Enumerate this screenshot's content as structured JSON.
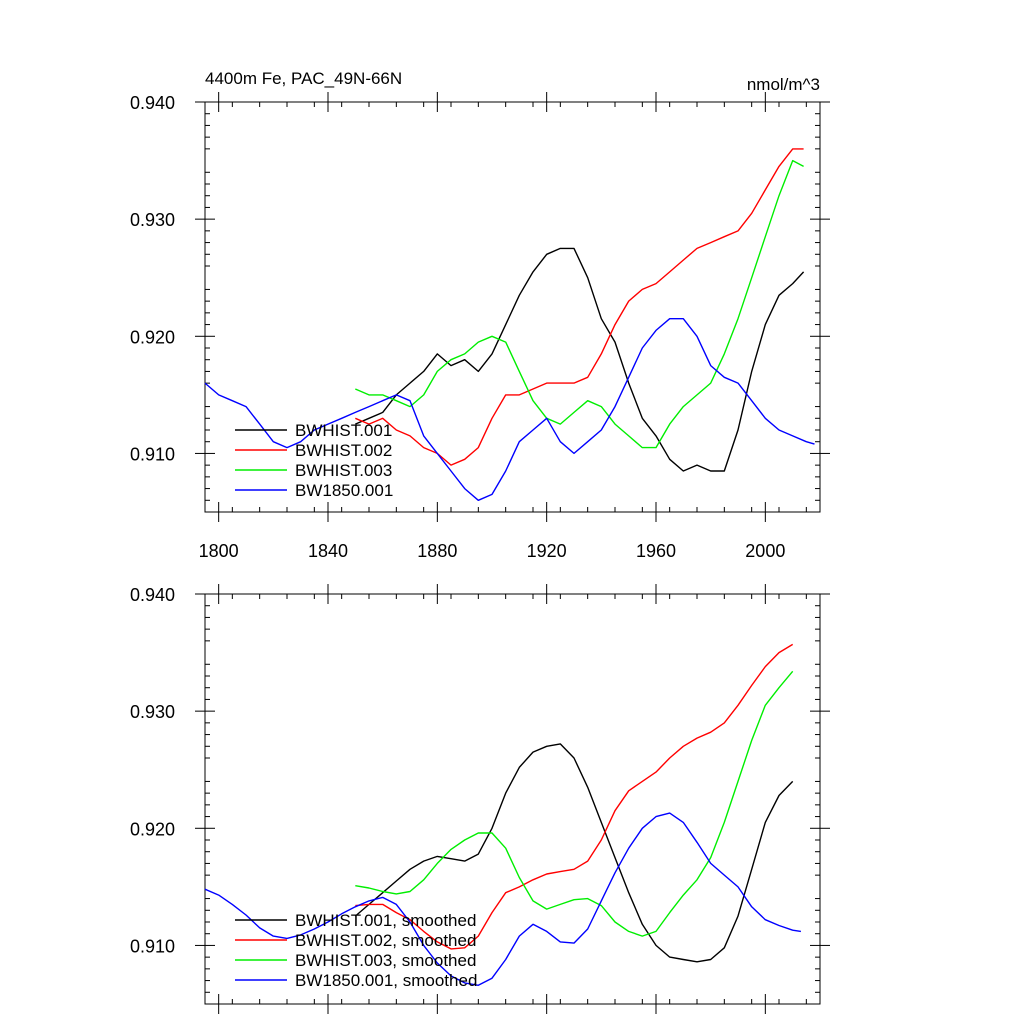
{
  "chart_data": [
    {
      "type": "line",
      "title": "4400m Fe, PAC_49N-66N",
      "units": "nmol/m^3",
      "xlim": [
        1795,
        2020
      ],
      "ylim": [
        0.905,
        0.94
      ],
      "xticks": [
        1800,
        1840,
        1880,
        1920,
        1960,
        2000
      ],
      "xtick_labels": [
        "1800",
        "1840",
        "1880",
        "1920",
        "1960",
        "2000"
      ],
      "yticks": [
        0.91,
        0.92,
        0.93,
        0.94
      ],
      "ytick_labels": [
        "0.910",
        "0.920",
        "0.930",
        "0.940"
      ],
      "grid": false,
      "legend_position": "bottom-left",
      "series": [
        {
          "name": "BWHIST.001",
          "color": "#000000",
          "x": [
            1850,
            1855,
            1860,
            1865,
            1870,
            1875,
            1880,
            1885,
            1890,
            1895,
            1900,
            1905,
            1910,
            1915,
            1920,
            1925,
            1930,
            1935,
            1940,
            1945,
            1950,
            1955,
            1960,
            1965,
            1970,
            1975,
            1980,
            1985,
            1990,
            1995,
            2000,
            2005,
            2010,
            2014
          ],
          "y": [
            0.9125,
            0.913,
            0.9135,
            0.915,
            0.916,
            0.917,
            0.9185,
            0.9175,
            0.918,
            0.917,
            0.9185,
            0.921,
            0.9235,
            0.9255,
            0.927,
            0.9275,
            0.9275,
            0.925,
            0.9215,
            0.9195,
            0.916,
            0.913,
            0.9115,
            0.9095,
            0.9085,
            0.909,
            0.9085,
            0.9085,
            0.912,
            0.917,
            0.921,
            0.9235,
            0.9245,
            0.9255
          ]
        },
        {
          "name": "BWHIST.002",
          "color": "#ff0000",
          "x": [
            1850,
            1855,
            1860,
            1865,
            1870,
            1875,
            1880,
            1885,
            1890,
            1895,
            1900,
            1905,
            1910,
            1915,
            1920,
            1925,
            1930,
            1935,
            1940,
            1945,
            1950,
            1955,
            1960,
            1965,
            1970,
            1975,
            1980,
            1985,
            1990,
            1995,
            2000,
            2005,
            2010,
            2014
          ],
          "y": [
            0.913,
            0.9125,
            0.913,
            0.912,
            0.9115,
            0.9105,
            0.91,
            0.909,
            0.9095,
            0.9105,
            0.913,
            0.915,
            0.915,
            0.9155,
            0.916,
            0.916,
            0.916,
            0.9165,
            0.9185,
            0.921,
            0.923,
            0.924,
            0.9245,
            0.9255,
            0.9265,
            0.9275,
            0.928,
            0.9285,
            0.929,
            0.9305,
            0.9325,
            0.9345,
            0.936,
            0.936
          ]
        },
        {
          "name": "BWHIST.003",
          "color": "#00ee00",
          "x": [
            1850,
            1855,
            1860,
            1865,
            1870,
            1875,
            1880,
            1885,
            1890,
            1895,
            1900,
            1905,
            1910,
            1915,
            1920,
            1925,
            1930,
            1935,
            1940,
            1945,
            1950,
            1955,
            1960,
            1965,
            1970,
            1975,
            1980,
            1985,
            1990,
            1995,
            2000,
            2005,
            2010,
            2014
          ],
          "y": [
            0.9155,
            0.915,
            0.915,
            0.9145,
            0.914,
            0.915,
            0.917,
            0.918,
            0.9185,
            0.9195,
            0.92,
            0.9195,
            0.917,
            0.9145,
            0.913,
            0.9125,
            0.9135,
            0.9145,
            0.914,
            0.9125,
            0.9115,
            0.9105,
            0.9105,
            0.9125,
            0.914,
            0.915,
            0.916,
            0.9185,
            0.9215,
            0.925,
            0.9285,
            0.932,
            0.935,
            0.9345
          ]
        },
        {
          "name": "BW1850.001",
          "color": "#0000ff",
          "x": [
            1795,
            1800,
            1805,
            1810,
            1815,
            1820,
            1825,
            1830,
            1835,
            1840,
            1845,
            1850,
            1855,
            1860,
            1865,
            1870,
            1875,
            1880,
            1885,
            1890,
            1895,
            1900,
            1905,
            1910,
            1915,
            1920,
            1925,
            1930,
            1935,
            1940,
            1945,
            1950,
            1955,
            1960,
            1965,
            1970,
            1975,
            1980,
            1985,
            1990,
            1995,
            2000,
            2005,
            2010,
            2015,
            2018
          ],
          "y": [
            0.916,
            0.915,
            0.9145,
            0.914,
            0.9125,
            0.911,
            0.9105,
            0.911,
            0.912,
            0.9125,
            0.913,
            0.9135,
            0.914,
            0.9145,
            0.915,
            0.9145,
            0.9115,
            0.91,
            0.9085,
            0.907,
            0.906,
            0.9065,
            0.9085,
            0.911,
            0.912,
            0.913,
            0.911,
            0.91,
            0.911,
            0.912,
            0.914,
            0.9165,
            0.919,
            0.9205,
            0.9215,
            0.9215,
            0.92,
            0.9175,
            0.9165,
            0.916,
            0.9145,
            0.913,
            0.912,
            0.9115,
            0.911,
            0.9108
          ]
        }
      ]
    },
    {
      "type": "line",
      "title": "",
      "xlim": [
        1795,
        2020
      ],
      "ylim": [
        0.905,
        0.94
      ],
      "xticks": [
        1800,
        1840,
        1880,
        1920,
        1960,
        2000
      ],
      "xtick_labels": [],
      "yticks": [
        0.91,
        0.92,
        0.93,
        0.94
      ],
      "ytick_labels": [
        "0.910",
        "0.920",
        "0.930",
        "0.940"
      ],
      "grid": false,
      "legend_position": "bottom-left",
      "series": [
        {
          "name": "BWHIST.001, smoothed",
          "color": "#000000",
          "x": [
            1850,
            1855,
            1860,
            1865,
            1870,
            1875,
            1880,
            1885,
            1890,
            1895,
            1900,
            1905,
            1910,
            1915,
            1920,
            1925,
            1930,
            1935,
            1940,
            1945,
            1950,
            1955,
            1960,
            1965,
            1970,
            1975,
            1980,
            1985,
            1990,
            1995,
            2000,
            2005,
            2010
          ],
          "y": [
            0.9125,
            0.9135,
            0.9145,
            0.9155,
            0.9165,
            0.9172,
            0.9176,
            0.9174,
            0.9172,
            0.9178,
            0.92,
            0.923,
            0.9252,
            0.9265,
            0.927,
            0.9272,
            0.926,
            0.9235,
            0.9205,
            0.9175,
            0.9145,
            0.9118,
            0.91,
            0.909,
            0.9088,
            0.9086,
            0.9088,
            0.9098,
            0.9125,
            0.9165,
            0.9205,
            0.9228,
            0.924
          ]
        },
        {
          "name": "BWHIST.002, smoothed",
          "color": "#ff0000",
          "x": [
            1850,
            1855,
            1860,
            1865,
            1870,
            1875,
            1880,
            1885,
            1890,
            1895,
            1900,
            1905,
            1910,
            1915,
            1920,
            1925,
            1930,
            1935,
            1940,
            1945,
            1950,
            1955,
            1960,
            1965,
            1970,
            1975,
            1980,
            1985,
            1990,
            1995,
            2000,
            2005,
            2010
          ],
          "y": [
            0.9134,
            0.9135,
            0.9135,
            0.9128,
            0.9122,
            0.9112,
            0.9103,
            0.9097,
            0.9098,
            0.9108,
            0.9128,
            0.9145,
            0.915,
            0.9156,
            0.9161,
            0.9163,
            0.9165,
            0.9172,
            0.919,
            0.9215,
            0.9232,
            0.924,
            0.9248,
            0.926,
            0.927,
            0.9277,
            0.9282,
            0.929,
            0.9305,
            0.9322,
            0.9338,
            0.935,
            0.9357
          ]
        },
        {
          "name": "BWHIST.003, smoothed",
          "color": "#00ee00",
          "x": [
            1850,
            1855,
            1860,
            1865,
            1870,
            1875,
            1880,
            1885,
            1890,
            1895,
            1900,
            1905,
            1910,
            1915,
            1920,
            1925,
            1930,
            1935,
            1940,
            1945,
            1950,
            1955,
            1960,
            1965,
            1970,
            1975,
            1980,
            1985,
            1990,
            1995,
            2000,
            2005,
            2010
          ],
          "y": [
            0.9151,
            0.9149,
            0.9146,
            0.9144,
            0.9146,
            0.9156,
            0.917,
            0.9182,
            0.919,
            0.9196,
            0.9196,
            0.9183,
            0.9158,
            0.9138,
            0.9131,
            0.9135,
            0.9139,
            0.914,
            0.9134,
            0.912,
            0.9112,
            0.9108,
            0.9112,
            0.9128,
            0.9143,
            0.9156,
            0.9175,
            0.9205,
            0.924,
            0.9275,
            0.9305,
            0.932,
            0.9334
          ]
        },
        {
          "name": "BW1850.001, smoothed",
          "color": "#0000ff",
          "x": [
            1795,
            1800,
            1805,
            1810,
            1815,
            1820,
            1825,
            1830,
            1835,
            1840,
            1845,
            1850,
            1855,
            1860,
            1865,
            1870,
            1875,
            1880,
            1885,
            1890,
            1895,
            1900,
            1905,
            1910,
            1915,
            1920,
            1925,
            1930,
            1935,
            1940,
            1945,
            1950,
            1955,
            1960,
            1965,
            1970,
            1975,
            1980,
            1985,
            1990,
            1995,
            2000,
            2005,
            2010,
            2013
          ],
          "y": [
            0.9148,
            0.9143,
            0.9135,
            0.9126,
            0.9115,
            0.9108,
            0.9106,
            0.9109,
            0.9114,
            0.912,
            0.9127,
            0.9133,
            0.9138,
            0.9141,
            0.9135,
            0.912,
            0.91,
            0.9085,
            0.9074,
            0.9068,
            0.9066,
            0.9072,
            0.9088,
            0.9108,
            0.9118,
            0.9112,
            0.9103,
            0.9102,
            0.9114,
            0.9138,
            0.9162,
            0.9183,
            0.92,
            0.921,
            0.9213,
            0.9205,
            0.9188,
            0.917,
            0.916,
            0.915,
            0.9133,
            0.9122,
            0.9117,
            0.9113,
            0.9112
          ]
        }
      ]
    }
  ]
}
